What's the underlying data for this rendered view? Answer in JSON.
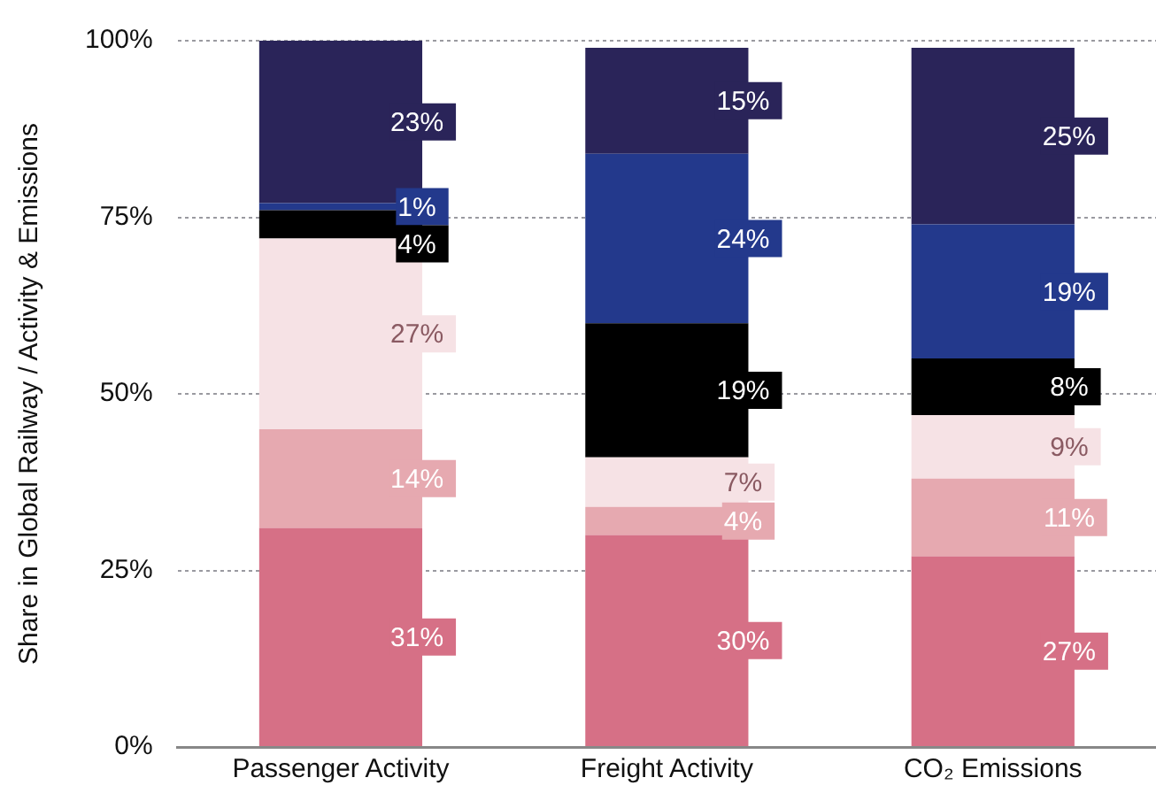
{
  "chart_data": {
    "type": "bar",
    "stacked": true,
    "ylabel": "Share in Global Railway / Activity & Emissions",
    "categories": [
      "Passenger Activity",
      "Freight Activity",
      "CO₂ Emissions"
    ],
    "series": [
      {
        "color": "#d67086",
        "values": [
          31,
          30,
          27
        ],
        "value_labels": [
          "31%",
          "30%",
          "27%"
        ]
      },
      {
        "color": "#e6a9b0",
        "values": [
          14,
          4,
          11
        ],
        "value_labels": [
          "14%",
          "4%",
          "11%"
        ]
      },
      {
        "color": "#f6e2e5",
        "values": [
          27,
          7,
          9
        ],
        "value_labels": [
          "27%",
          "7%",
          "9%"
        ]
      },
      {
        "color": "#000000",
        "values": [
          4,
          19,
          8
        ],
        "value_labels": [
          "4%",
          "19%",
          "8%"
        ]
      },
      {
        "color": "#23398c",
        "values": [
          1,
          24,
          19
        ],
        "value_labels": [
          "1%",
          "24%",
          "19%"
        ]
      },
      {
        "color": "#2a2459",
        "values": [
          23,
          15,
          25
        ],
        "value_labels": [
          "23%",
          "15%",
          "25%"
        ]
      }
    ],
    "ylim": [
      0,
      100
    ],
    "yticks": [
      {
        "value": 0,
        "label": "0%"
      },
      {
        "value": 25,
        "label": "25%"
      },
      {
        "value": 50,
        "label": "50%"
      },
      {
        "value": 75,
        "label": "75%"
      },
      {
        "value": 100,
        "label": "100%"
      }
    ],
    "grid": "y",
    "legend": false
  }
}
